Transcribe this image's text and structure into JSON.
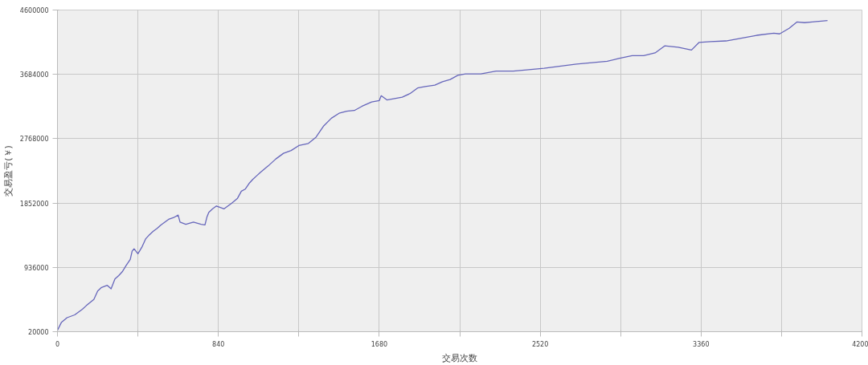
{
  "chart_data": {
    "type": "line",
    "xlabel": "交易次数",
    "ylabel": "交易盈亏(￥)",
    "xlim": [
      0,
      4200
    ],
    "ylim": [
      20000,
      4600000
    ],
    "xticks": [
      0,
      {
        "value": 420,
        "label": null
      },
      840,
      {
        "value": 1260,
        "label": null
      },
      1680,
      {
        "value": 2100,
        "label": null
      },
      2520,
      {
        "value": 2940,
        "label": null
      },
      3360,
      {
        "value": 3780,
        "label": null
      },
      4200
    ],
    "yticks": [
      20000,
      936000,
      1852000,
      2768000,
      3684000,
      4600000
    ],
    "grid": true,
    "marker": "none",
    "line_style": "solid",
    "x": [
      0,
      20,
      50,
      90,
      130,
      150,
      190,
      210,
      230,
      260,
      280,
      300,
      320,
      340,
      360,
      380,
      390,
      400,
      420,
      440,
      460,
      480,
      500,
      520,
      540,
      560,
      580,
      610,
      630,
      640,
      670,
      710,
      750,
      770,
      780,
      790,
      810,
      830,
      850,
      870,
      890,
      910,
      940,
      960,
      980,
      1000,
      1020,
      1040,
      1060,
      1100,
      1140,
      1180,
      1220,
      1260,
      1310,
      1350,
      1390,
      1430,
      1470,
      1510,
      1550,
      1590,
      1640,
      1680,
      1690,
      1720,
      1760,
      1800,
      1840,
      1880,
      1920,
      1970,
      2010,
      2050,
      2090,
      2130,
      2210,
      2290,
      2380,
      2460,
      2540,
      2620,
      2710,
      2790,
      2870,
      2930,
      3000,
      3060,
      3120,
      3170,
      3240,
      3310,
      3350,
      3410,
      3490,
      3570,
      3650,
      3740,
      3770,
      3820,
      3860,
      3900,
      3940,
      4020
    ],
    "series": [
      {
        "color": "#6666bb",
        "values": [
          40000,
          150000,
          220000,
          260000,
          340000,
          390000,
          480000,
          600000,
          650000,
          680000,
          630000,
          770000,
          820000,
          880000,
          970000,
          1050000,
          1170000,
          1200000,
          1130000,
          1220000,
          1340000,
          1400000,
          1450000,
          1490000,
          1540000,
          1580000,
          1620000,
          1650000,
          1680000,
          1580000,
          1550000,
          1580000,
          1550000,
          1540000,
          1650000,
          1720000,
          1770000,
          1810000,
          1790000,
          1770000,
          1810000,
          1850000,
          1920000,
          2020000,
          2050000,
          2130000,
          2190000,
          2240000,
          2290000,
          2380000,
          2480000,
          2560000,
          2600000,
          2670000,
          2700000,
          2790000,
          2950000,
          3060000,
          3130000,
          3160000,
          3170000,
          3230000,
          3290000,
          3310000,
          3380000,
          3320000,
          3340000,
          3360000,
          3410000,
          3490000,
          3510000,
          3530000,
          3580000,
          3610000,
          3670000,
          3690000,
          3690000,
          3730000,
          3730000,
          3750000,
          3770000,
          3800000,
          3830000,
          3850000,
          3870000,
          3910000,
          3950000,
          3950000,
          3990000,
          4090000,
          4070000,
          4030000,
          4140000,
          4150000,
          4160000,
          4200000,
          4240000,
          4270000,
          4260000,
          4340000,
          4430000,
          4420000,
          4430000,
          4450000
        ]
      }
    ]
  }
}
